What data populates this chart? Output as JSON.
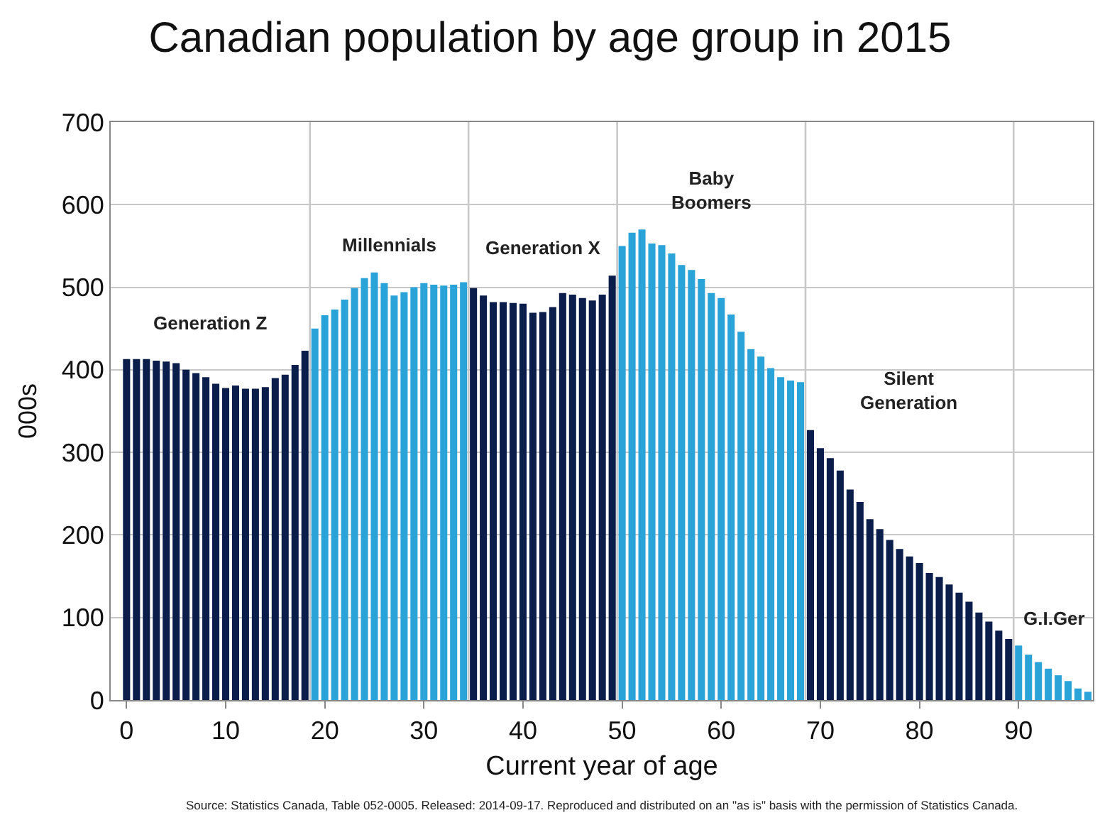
{
  "chart_data": {
    "type": "bar",
    "title": "Canadian population by age group in 2015",
    "xlabel": "Current year of age",
    "ylabel": "000s",
    "x": [
      0,
      1,
      2,
      3,
      4,
      5,
      6,
      7,
      8,
      9,
      10,
      11,
      12,
      13,
      14,
      15,
      16,
      17,
      18,
      19,
      20,
      21,
      22,
      23,
      24,
      25,
      26,
      27,
      28,
      29,
      30,
      31,
      32,
      33,
      34,
      35,
      36,
      37,
      38,
      39,
      40,
      41,
      42,
      43,
      44,
      45,
      46,
      47,
      48,
      49,
      50,
      51,
      52,
      53,
      54,
      55,
      56,
      57,
      58,
      59,
      60,
      61,
      62,
      63,
      64,
      65,
      66,
      67,
      68,
      69,
      70,
      71,
      72,
      73,
      74,
      75,
      76,
      77,
      78,
      79,
      80,
      81,
      82,
      83,
      84,
      85,
      86,
      87,
      88,
      89,
      90,
      91,
      92,
      93,
      94,
      95,
      96,
      97
    ],
    "values": [
      413,
      413,
      413,
      411,
      410,
      408,
      400,
      396,
      391,
      383,
      378,
      381,
      377,
      377,
      379,
      390,
      394,
      406,
      423,
      450,
      466,
      473,
      485,
      499,
      511,
      518,
      505,
      490,
      494,
      500,
      505,
      503,
      502,
      503,
      506,
      499,
      490,
      482,
      482,
      481,
      480,
      469,
      470,
      476,
      493,
      491,
      487,
      484,
      491,
      514,
      550,
      566,
      570,
      553,
      551,
      541,
      527,
      521,
      510,
      493,
      487,
      467,
      446,
      425,
      416,
      402,
      391,
      387,
      385,
      327,
      305,
      293,
      278,
      255,
      240,
      219,
      207,
      194,
      183,
      174,
      166,
      154,
      149,
      140,
      130,
      119,
      106,
      95,
      84,
      74,
      66,
      55,
      46,
      38,
      30,
      23,
      14,
      10
    ],
    "colors": [
      "#0b1d4a",
      "#0b1d4a",
      "#0b1d4a",
      "#0b1d4a",
      "#0b1d4a",
      "#0b1d4a",
      "#0b1d4a",
      "#0b1d4a",
      "#0b1d4a",
      "#0b1d4a",
      "#0b1d4a",
      "#0b1d4a",
      "#0b1d4a",
      "#0b1d4a",
      "#0b1d4a",
      "#0b1d4a",
      "#0b1d4a",
      "#0b1d4a",
      "#0b1d4a",
      "#2aa3d8",
      "#2aa3d8",
      "#2aa3d8",
      "#2aa3d8",
      "#2aa3d8",
      "#2aa3d8",
      "#2aa3d8",
      "#2aa3d8",
      "#2aa3d8",
      "#2aa3d8",
      "#2aa3d8",
      "#2aa3d8",
      "#2aa3d8",
      "#2aa3d8",
      "#2aa3d8",
      "#2aa3d8",
      "#0b1d4a",
      "#0b1d4a",
      "#0b1d4a",
      "#0b1d4a",
      "#0b1d4a",
      "#0b1d4a",
      "#0b1d4a",
      "#0b1d4a",
      "#0b1d4a",
      "#0b1d4a",
      "#0b1d4a",
      "#0b1d4a",
      "#0b1d4a",
      "#0b1d4a",
      "#0b1d4a",
      "#2aa3d8",
      "#2aa3d8",
      "#2aa3d8",
      "#2aa3d8",
      "#2aa3d8",
      "#2aa3d8",
      "#2aa3d8",
      "#2aa3d8",
      "#2aa3d8",
      "#2aa3d8",
      "#2aa3d8",
      "#2aa3d8",
      "#2aa3d8",
      "#2aa3d8",
      "#2aa3d8",
      "#2aa3d8",
      "#2aa3d8",
      "#2aa3d8",
      "#2aa3d8",
      "#0b1d4a",
      "#0b1d4a",
      "#0b1d4a",
      "#0b1d4a",
      "#0b1d4a",
      "#0b1d4a",
      "#0b1d4a",
      "#0b1d4a",
      "#0b1d4a",
      "#0b1d4a",
      "#0b1d4a",
      "#0b1d4a",
      "#0b1d4a",
      "#0b1d4a",
      "#0b1d4a",
      "#0b1d4a",
      "#0b1d4a",
      "#0b1d4a",
      "#0b1d4a",
      "#0b1d4a",
      "#0b1d4a",
      "#2aa3d8",
      "#2aa3d8",
      "#2aa3d8",
      "#2aa3d8",
      "#2aa3d8",
      "#2aa3d8",
      "#2aa3d8",
      "#2aa3d8"
    ],
    "xlim": [
      -1.6,
      97.5
    ],
    "xticks": [
      0,
      10,
      20,
      30,
      40,
      50,
      60,
      70,
      80,
      90
    ],
    "ylim": [
      0,
      700
    ],
    "yticks": [
      0,
      100,
      200,
      300,
      400,
      500,
      600,
      700
    ],
    "grid": "y",
    "ref_lines": [
      {
        "axis": "x",
        "value": 18.5,
        "color": "#c8c8c8"
      },
      {
        "axis": "x",
        "value": 34.5,
        "color": "#c8c8c8"
      },
      {
        "axis": "x",
        "value": 49.5,
        "color": "#c8c8c8"
      },
      {
        "axis": "x",
        "value": 68.5,
        "color": "#c8c8c8"
      },
      {
        "axis": "x",
        "value": 89.5,
        "color": "#c8c8c8"
      }
    ],
    "annotations": [
      "Generation Z",
      "Millennials",
      "Generation X",
      "Baby Boomers",
      "Silent Generation",
      "G.I.Ger",
      "Source: Statistics Canada, Table 052-0005. Released: 2014-09-17. Reproduced and distributed on an \"as is\" basis with the permission of Statistics Canada."
    ]
  }
}
